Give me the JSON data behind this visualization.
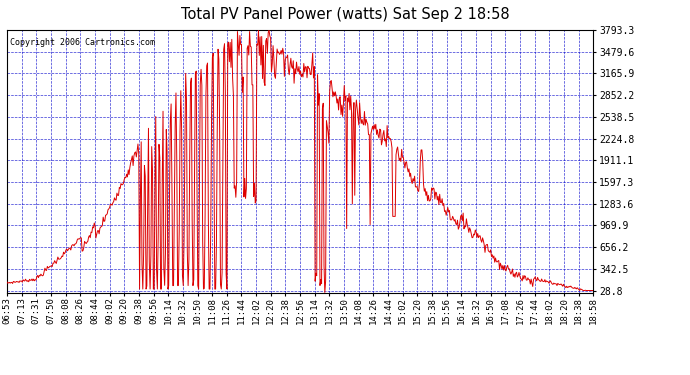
{
  "title": "Total PV Panel Power (watts) Sat Sep 2 18:58",
  "copyright": "Copyright 2006 Cartronics.com",
  "background_color": "#ffffff",
  "plot_bg_color": "#ffffff",
  "grid_color": "#0000cc",
  "line_color": "#dd0000",
  "y_ticks": [
    28.8,
    342.5,
    656.2,
    969.9,
    1283.6,
    1597.3,
    1911.1,
    2224.8,
    2538.5,
    2852.2,
    3165.9,
    3479.6,
    3793.3
  ],
  "y_min": 0,
  "y_max": 3793.3,
  "x_labels": [
    "06:53",
    "07:13",
    "07:31",
    "07:50",
    "08:08",
    "08:26",
    "08:44",
    "09:02",
    "09:20",
    "09:38",
    "09:56",
    "10:14",
    "10:32",
    "10:50",
    "11:08",
    "11:26",
    "11:44",
    "12:02",
    "12:20",
    "12:38",
    "12:56",
    "13:14",
    "13:32",
    "13:50",
    "14:08",
    "14:26",
    "14:44",
    "15:02",
    "15:20",
    "15:38",
    "15:56",
    "16:14",
    "16:32",
    "16:50",
    "17:08",
    "17:26",
    "17:44",
    "18:02",
    "18:20",
    "18:38",
    "18:58"
  ]
}
